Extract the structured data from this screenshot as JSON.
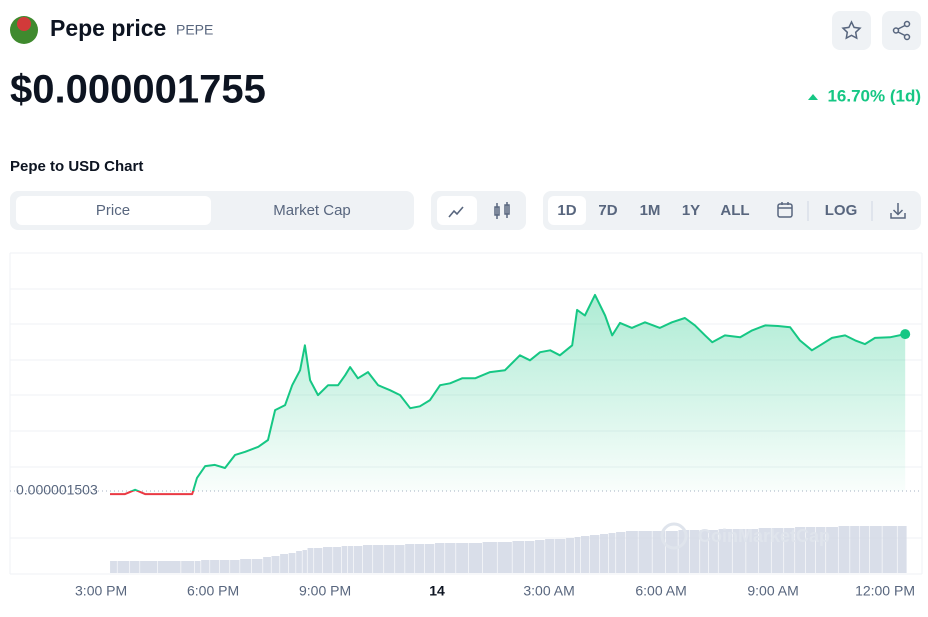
{
  "header": {
    "title": "Pepe price",
    "symbol": "PEPE",
    "price": "$0.000001755",
    "change": "16.70% (1d)"
  },
  "section_title": "Pepe to USD Chart",
  "tabs": [
    "Price",
    "Market Cap"
  ],
  "ranges": [
    "1D",
    "7D",
    "1M",
    "1Y",
    "ALL"
  ],
  "log_button": "LOG",
  "chart_data": {
    "type": "area",
    "x": [
      15.24,
      15.64,
      15.91,
      16.18,
      16.85,
      17.44,
      17.57,
      17.79,
      18.05,
      18.32,
      18.59,
      18.86,
      19.21,
      19.47,
      19.66,
      19.93,
      20.12,
      20.33,
      20.46,
      20.6,
      20.81,
      21.08,
      21.35,
      21.54,
      21.67,
      21.88,
      22.15,
      22.42,
      22.74,
      23.01,
      23.28,
      23.54,
      23.81,
      24.08,
      24.35,
      24.67,
      25.02,
      25.42,
      25.82,
      26.22,
      26.49,
      26.76,
      27.03,
      27.29,
      27.62,
      27.75,
      27.96,
      28.23,
      28.5,
      28.69,
      28.9,
      29.22,
      29.57,
      29.97,
      30.29,
      30.64,
      30.91,
      31.18,
      31.37,
      31.71,
      32.12,
      32.44,
      32.79,
      33.13,
      33.46,
      33.72,
      34.04,
      34.26,
      34.58,
      34.93,
      35.2,
      35.46,
      35.73,
      36.13,
      36.54
    ],
    "values": [
      1.498e-06,
      1.498e-06,
      1.505e-06,
      1.498e-06,
      1.498e-06,
      1.498e-06,
      1.524e-06,
      1.543e-06,
      1.545e-06,
      1.54e-06,
      1.561e-06,
      1.566e-06,
      1.574e-06,
      1.585e-06,
      1.633e-06,
      1.641e-06,
      1.673e-06,
      1.697e-06,
      1.737e-06,
      1.681e-06,
      1.657e-06,
      1.673e-06,
      1.673e-06,
      1.689e-06,
      1.702e-06,
      1.684e-06,
      1.694e-06,
      1.673e-06,
      1.665e-06,
      1.657e-06,
      1.636e-06,
      1.639e-06,
      1.649e-06,
      1.673e-06,
      1.676e-06,
      1.684e-06,
      1.684e-06,
      1.694e-06,
      1.697e-06,
      1.721e-06,
      1.713e-06,
      1.726e-06,
      1.729e-06,
      1.721e-06,
      1.737e-06,
      1.794e-06,
      1.785e-06,
      1.818e-06,
      1.785e-06,
      1.753e-06,
      1.773e-06,
      1.765e-06,
      1.774e-06,
      1.765e-06,
      1.774e-06,
      1.781e-06,
      1.769e-06,
      1.753e-06,
      1.742e-06,
      1.753e-06,
      1.75e-06,
      1.761e-06,
      1.769e-06,
      1.768e-06,
      1.766e-06,
      1.745e-06,
      1.729e-06,
      1.737e-06,
      1.749e-06,
      1.753e-06,
      1.745e-06,
      1.739e-06,
      1.749e-06,
      1.75e-06,
      1.755e-06
    ],
    "volumes": [
      12,
      12,
      12,
      12,
      12,
      12,
      12,
      13,
      13,
      13,
      13,
      14,
      14,
      16,
      17,
      19,
      20,
      22,
      23,
      25,
      25,
      26,
      26,
      27,
      27,
      27,
      28,
      28,
      28,
      28,
      29,
      29,
      29,
      30,
      30,
      30,
      30,
      31,
      31,
      32,
      32,
      33,
      34,
      34,
      35,
      36,
      37,
      38,
      39,
      40,
      41,
      42,
      42,
      42,
      42,
      43,
      43,
      43,
      43,
      44,
      44,
      44,
      45,
      45,
      45,
      46,
      46,
      46,
      46,
      47,
      47,
      47,
      47,
      47,
      47
    ],
    "vlim": [
      0,
      50
    ],
    "xlim": [
      12.56,
      36.99
    ],
    "ylim": [
      1.45e-06,
      1.85e-06
    ],
    "xticks": [
      {
        "value": 15,
        "label": "3:00 PM"
      },
      {
        "value": 18,
        "label": "6:00 PM"
      },
      {
        "value": 21,
        "label": "9:00 PM"
      },
      {
        "value": 24,
        "label": "14"
      },
      {
        "value": 27,
        "label": "3:00 AM"
      },
      {
        "value": 30,
        "label": "6:00 AM"
      },
      {
        "value": 33,
        "label": "9:00 AM"
      },
      {
        "value": 36,
        "label": "12:00 PM"
      }
    ],
    "reference": {
      "value": 1.503e-06,
      "label": "0.000001503"
    },
    "colors": {
      "up": "#16c784",
      "down": "#ea3943",
      "volume": "#cfd6e4"
    },
    "watermark": "CoinMarketCap"
  }
}
